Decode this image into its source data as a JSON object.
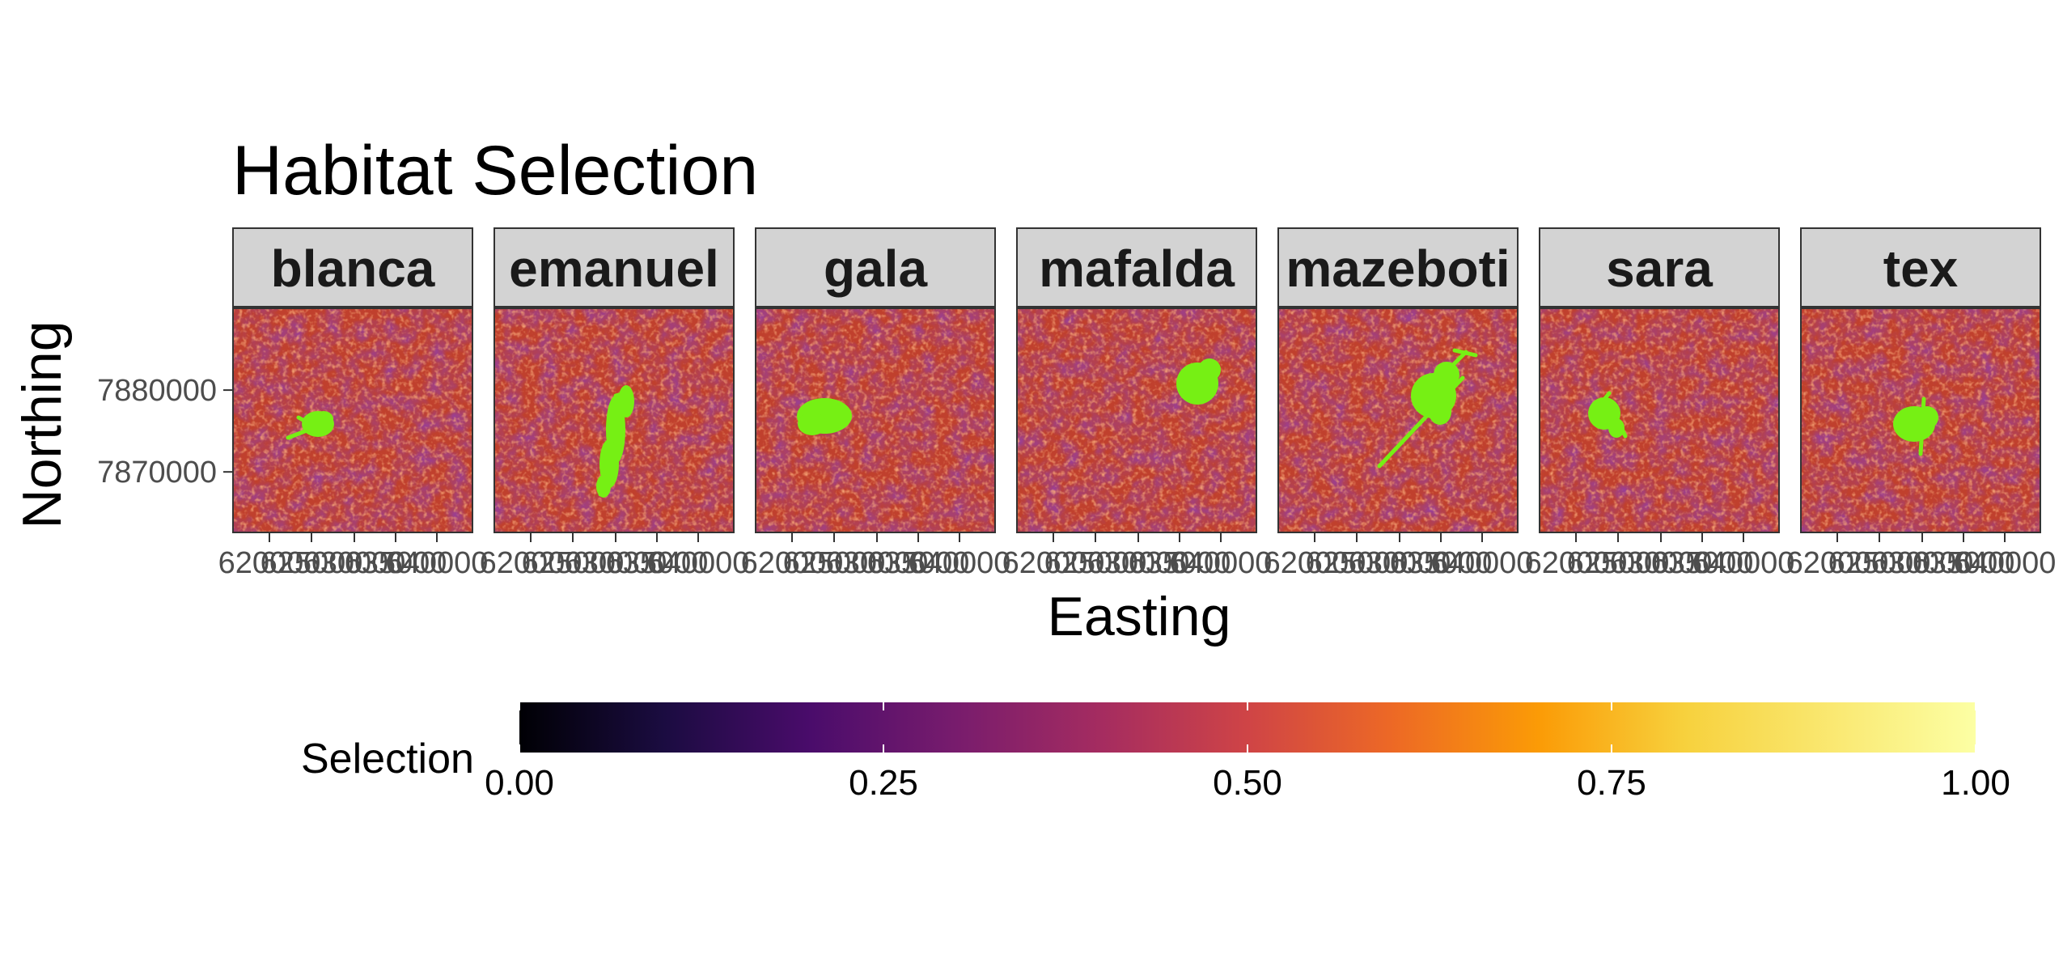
{
  "chart_data": {
    "type": "heatmap",
    "title": "Habitat Selection",
    "xlabel": "Easting",
    "ylabel": "Northing",
    "facets": [
      "blanca",
      "emanuel",
      "gala",
      "mafalda",
      "mazeboti",
      "sara",
      "tex"
    ],
    "x_tick_labels": [
      "620000",
      "625000",
      "630000",
      "635000",
      "640000"
    ],
    "y_ticks": [
      7870000,
      7880000
    ],
    "y_tick_labels": [
      "7870000",
      "7880000"
    ],
    "legend": {
      "title": "Selection",
      "position": "bottom",
      "ticks": [
        "0.00",
        "0.25",
        "0.50",
        "0.75",
        "1.00"
      ],
      "scale": "inferno",
      "range": [
        0,
        1
      ]
    },
    "track_color": "#76f014",
    "raster_color": "#c0402d",
    "strip_fill": "#d3d3d3"
  }
}
